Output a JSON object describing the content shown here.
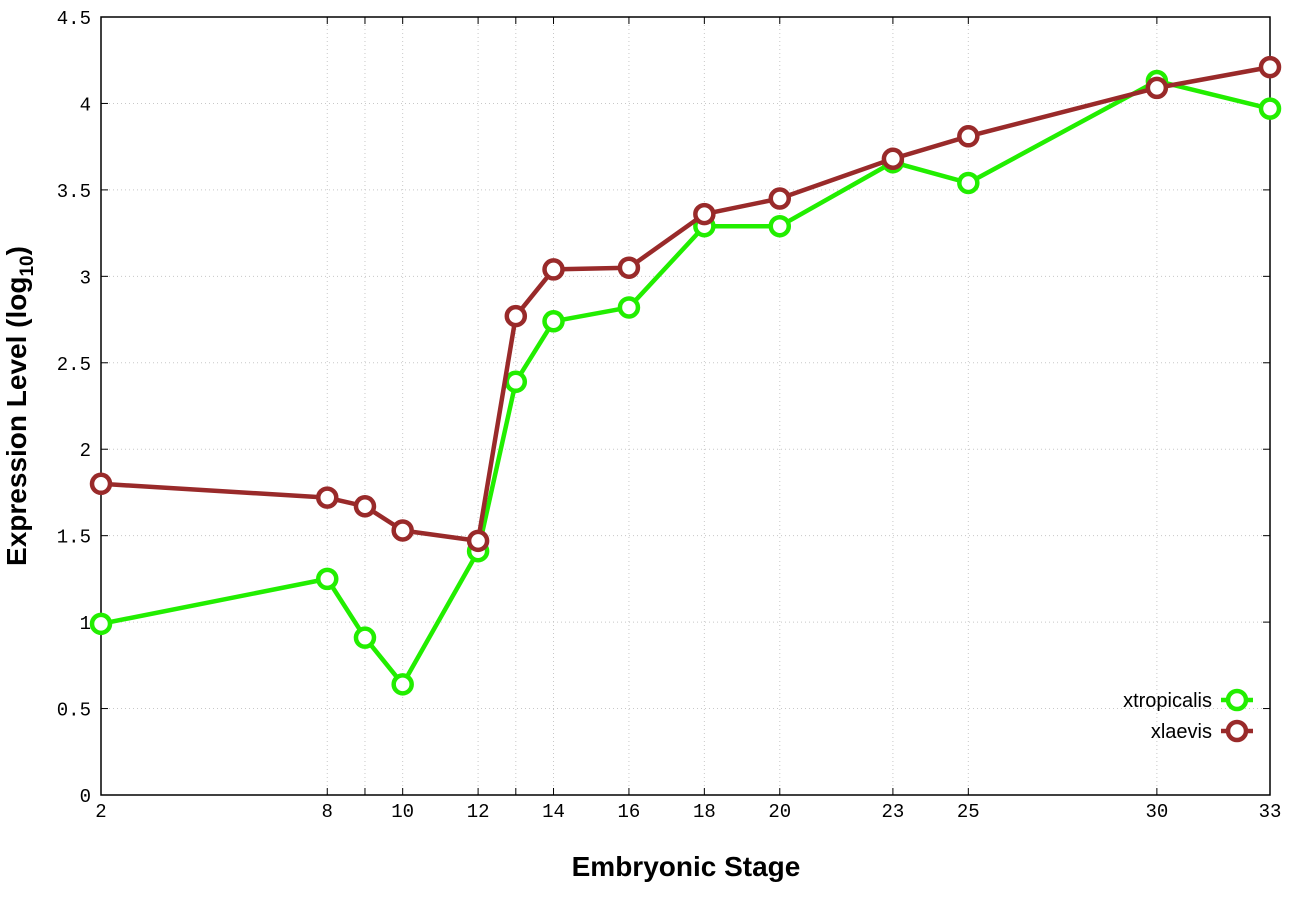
{
  "chart_data": {
    "type": "line",
    "xlabel": "Embryonic Stage",
    "ylabel_main": "Expression Level (log",
    "ylabel_sub": "10",
    "ylabel_tail": ")",
    "ylim": [
      0,
      4.5
    ],
    "y_ticks": [
      "0",
      "0.5",
      "1",
      "1.5",
      "2",
      "2.5",
      "3",
      "3.5",
      "4",
      "4.5"
    ],
    "categories": [
      "2",
      "8",
      "9",
      "10",
      "12",
      "13",
      "14",
      "16",
      "18",
      "20",
      "23",
      "25",
      "30",
      "33"
    ],
    "x_tick_labels": [
      "2",
      "8",
      "",
      "10",
      "12",
      "",
      "14",
      "16",
      "18",
      "20",
      "23",
      "25",
      "30",
      "33"
    ],
    "grid": true,
    "legend_position": "bottom-right",
    "series": [
      {
        "name": "xtropicalis",
        "color": "#22ee00",
        "values": [
          0.99,
          1.25,
          0.91,
          0.64,
          1.41,
          2.39,
          2.74,
          2.82,
          3.29,
          3.29,
          3.66,
          3.54,
          4.13,
          3.97
        ]
      },
      {
        "name": "xlaevis",
        "color": "#992a2a",
        "values": [
          1.8,
          1.72,
          1.67,
          1.53,
          1.47,
          2.77,
          3.04,
          3.05,
          3.36,
          3.45,
          3.68,
          3.81,
          4.09,
          4.21
        ]
      }
    ]
  }
}
